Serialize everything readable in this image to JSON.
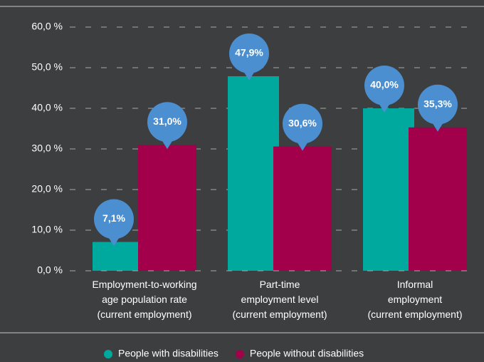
{
  "chart_data": {
    "type": "bar",
    "categories": [
      "Employment-to-working\nage population rate\n(current employment)",
      "Part-time\nemployment level\n(current employment)",
      "Informal\nemployment\n(current employment)"
    ],
    "series": [
      {
        "name": "People with disabilities",
        "color": "#00a99d",
        "values": [
          7.1,
          47.9,
          40.0
        ],
        "value_labels": [
          "7,1%",
          "47,9%",
          "40,0%"
        ]
      },
      {
        "name": "People without disabilities",
        "color": "#a3004b",
        "values": [
          31.0,
          30.6,
          35.3
        ],
        "value_labels": [
          "31,0%",
          "30,6%",
          "35,3%"
        ]
      }
    ],
    "bubble_color": "#4b8fd0",
    "ylim": [
      0,
      60
    ],
    "yticks": [
      {
        "value": 0,
        "label": "0,0 %"
      },
      {
        "value": 10,
        "label": "10,0 %"
      },
      {
        "value": 20,
        "label": "20,0 %"
      },
      {
        "value": 30,
        "label": "30,0 %"
      },
      {
        "value": 40,
        "label": "40,0 %"
      },
      {
        "value": 50,
        "label": "50,0 %"
      },
      {
        "value": 60,
        "label": "60,0 %"
      }
    ],
    "grid": true
  }
}
